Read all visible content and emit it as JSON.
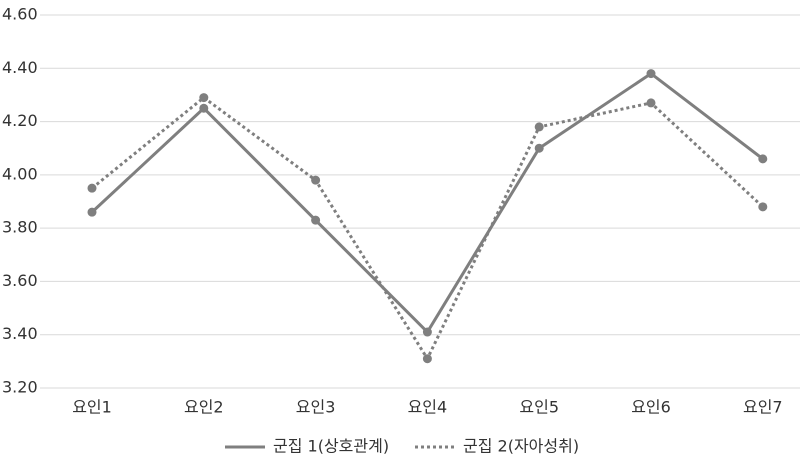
{
  "chart_data": {
    "type": "line",
    "categories": [
      "요인1",
      "요인2",
      "요인3",
      "요인4",
      "요인5",
      "요인6",
      "요인7"
    ],
    "series": [
      {
        "name": "군집 1(상호관계)",
        "color": "#7f7f7f",
        "dash": "solid",
        "values": [
          3.86,
          4.25,
          3.83,
          3.41,
          4.1,
          4.38,
          4.06
        ]
      },
      {
        "name": "군집 2(자아성취)",
        "color": "#7f7f7f",
        "dash": "dotted",
        "values": [
          3.95,
          4.29,
          3.98,
          3.31,
          4.18,
          4.27,
          3.88
        ]
      }
    ],
    "ylim": [
      3.2,
      4.6
    ],
    "yticks": [
      {
        "value": 3.2,
        "label": "3.20"
      },
      {
        "value": 3.4,
        "label": "3.40"
      },
      {
        "value": 3.6,
        "label": "3.60"
      },
      {
        "value": 3.8,
        "label": "3.80"
      },
      {
        "value": 4.0,
        "label": "4.00"
      },
      {
        "value": 4.2,
        "label": "4.20"
      },
      {
        "value": 4.4,
        "label": "4.40"
      },
      {
        "value": 4.6,
        "label": "4.60"
      }
    ],
    "grid": true,
    "legend": "bottom"
  }
}
